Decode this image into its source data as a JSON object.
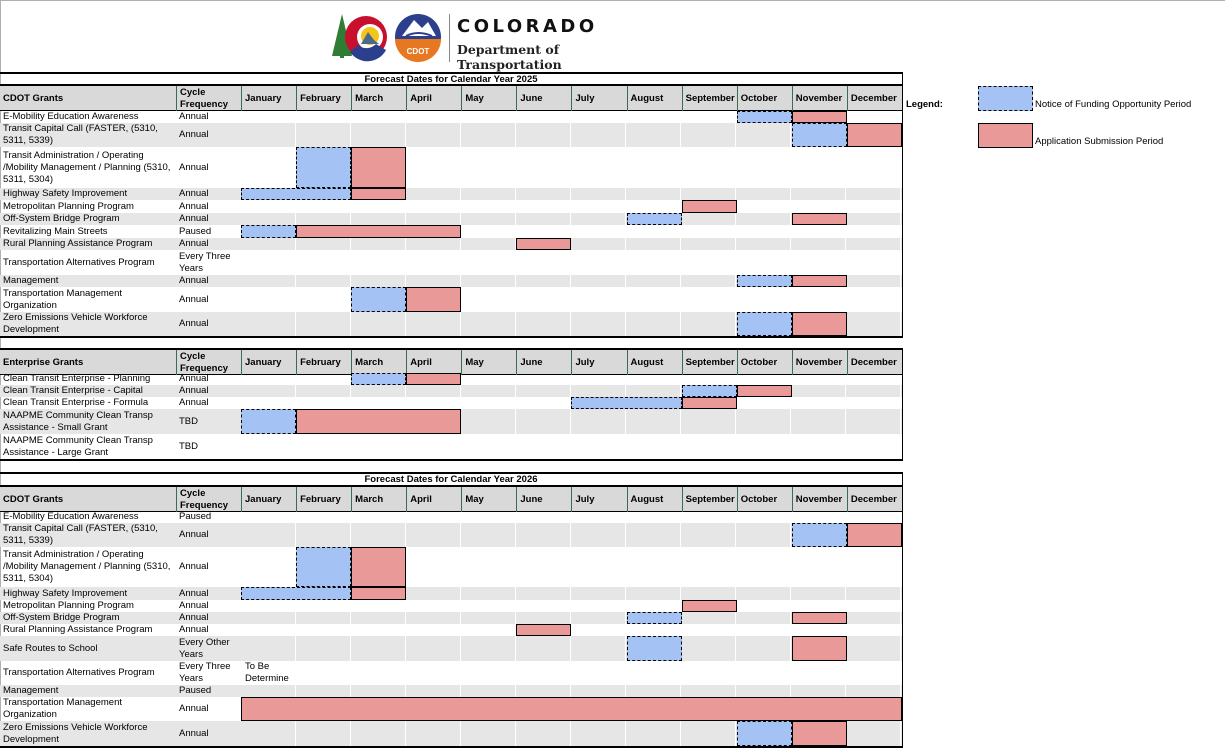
{
  "header": {
    "brand": "COLORADO",
    "subtitle": "Department of Transportation",
    "logo_badge": "CDOT"
  },
  "legend": {
    "label": "Legend:",
    "items": [
      {
        "type": "nofo",
        "label": "Notice of Funding Opportunity Period",
        "color": "#a4c2f4"
      },
      {
        "type": "app",
        "label": "Application Submission Period",
        "color": "#ea9999"
      }
    ]
  },
  "months": [
    "January",
    "February",
    "March",
    "April",
    "May",
    "June",
    "July",
    "August",
    "September",
    "October",
    "November",
    "December"
  ],
  "sections": [
    {
      "title": "Forecast Dates for Calendar Year 2025",
      "grant_header": "CDOT Grants",
      "cycle_header": "Cycle Frequency",
      "rows": [
        {
          "name": "E-Mobility Education Awareness",
          "cycle": "Annual",
          "nofo": [
            10
          ],
          "app": [
            11
          ]
        },
        {
          "name": "Transit Capital Call (FASTER, (5310, 5311, 5339)",
          "cycle": "Annual",
          "nofo": [
            11
          ],
          "app": [
            12
          ]
        },
        {
          "name": "Transit Administration / Operating /Mobility Management / Planning (5310, 5311, 5304)",
          "cycle": "Annual",
          "nofo": [
            2
          ],
          "app": [
            3
          ]
        },
        {
          "name": "Highway Safety Improvement",
          "cycle": "Annual",
          "nofo": [
            1,
            2
          ],
          "app": [
            3
          ]
        },
        {
          "name": "Metropolitan Planning Program",
          "cycle": "Annual",
          "nofo": [],
          "app": [
            9
          ]
        },
        {
          "name": "Off-System Bridge Program",
          "cycle": "Annual",
          "nofo": [
            8
          ],
          "app": [
            11
          ]
        },
        {
          "name": "Revitalizing Main Streets",
          "cycle": "Paused",
          "nofo": [
            1
          ],
          "app": [
            2,
            3,
            4
          ]
        },
        {
          "name": "Rural Planning Assistance Program",
          "cycle": "Annual",
          "nofo": [],
          "app": [
            6
          ]
        },
        {
          "name": "Transportation Alternatives Program",
          "cycle": "Every Three Years",
          "nofo": [],
          "app": []
        },
        {
          "name": "Management",
          "cycle": "Annual",
          "nofo": [
            10
          ],
          "app": [
            11
          ]
        },
        {
          "name": "Transportation Management Organization",
          "cycle": "Annual",
          "nofo": [
            3
          ],
          "app": [
            4
          ]
        },
        {
          "name": "Zero Emissions Vehicle Workforce Development",
          "cycle": "Annual",
          "nofo": [
            10
          ],
          "app": [
            11
          ]
        }
      ]
    },
    {
      "title": "",
      "grant_header": "Enterprise Grants",
      "cycle_header": "Cycle Frequency",
      "rows": [
        {
          "name": "Clean Transit Enterprise - Planning",
          "cycle": "Annual",
          "nofo": [
            3
          ],
          "app": [
            4
          ]
        },
        {
          "name": "Clean Transit Enterprise - Capital",
          "cycle": "Annual",
          "nofo": [
            9
          ],
          "app": [
            10
          ]
        },
        {
          "name": "Clean Transit Enterprise - Formula",
          "cycle": "Annual",
          "nofo": [
            7,
            8
          ],
          "app": [
            9
          ]
        },
        {
          "name": "NAAPME Community Clean Transp Assistance - Small Grant",
          "cycle": "TBD",
          "nofo": [
            1
          ],
          "app": [
            2,
            3,
            4
          ]
        },
        {
          "name": "NAAPME Community Clean Transp Assistance - Large Grant",
          "cycle": "TBD",
          "nofo": [],
          "app": []
        }
      ]
    },
    {
      "title": "Forecast Dates for Calendar Year 2026",
      "grant_header": "CDOT Grants",
      "cycle_header": "Cycle Frequency",
      "rows": [
        {
          "name": "E-Mobility Education Awareness",
          "cycle": "Paused",
          "nofo": [],
          "app": []
        },
        {
          "name": "Transit Capital Call (FASTER, (5310, 5311, 5339)",
          "cycle": "Annual",
          "nofo": [
            11
          ],
          "app": [
            12
          ]
        },
        {
          "name": "Transit Administration / Operating /Mobility Management / Planning (5310, 5311, 5304)",
          "cycle": "Annual",
          "nofo": [
            2
          ],
          "app": [
            3
          ]
        },
        {
          "name": "Highway Safety Improvement",
          "cycle": "Annual",
          "nofo": [
            1,
            2
          ],
          "app": [
            3
          ]
        },
        {
          "name": "Metropolitan Planning Program",
          "cycle": "Annual",
          "nofo": [],
          "app": [
            9
          ]
        },
        {
          "name": "Off-System Bridge Program",
          "cycle": "Annual",
          "nofo": [
            8
          ],
          "app": [
            11
          ]
        },
        {
          "name": "Rural Planning Assistance Program",
          "cycle": "Annual",
          "nofo": [],
          "app": [
            6
          ]
        },
        {
          "name": "Safe Routes to School",
          "cycle": "Every Other Years",
          "nofo": [
            8
          ],
          "app": [
            11
          ]
        },
        {
          "name": "Transportation Alternatives Program",
          "cycle": "Every Three Years",
          "note": "To Be Determine",
          "nofo": [],
          "app": []
        },
        {
          "name": "Management",
          "cycle": "Paused",
          "nofo": [],
          "app": []
        },
        {
          "name": "Transportation Management Organization",
          "cycle": "Annual",
          "nofo": [],
          "app": [
            1,
            2,
            3,
            4,
            5,
            6,
            7,
            8,
            9,
            10,
            11,
            12
          ]
        },
        {
          "name": "Zero Emissions Vehicle Workforce Development",
          "cycle": "Annual",
          "nofo": [
            10
          ],
          "app": [
            11
          ]
        }
      ]
    }
  ]
}
